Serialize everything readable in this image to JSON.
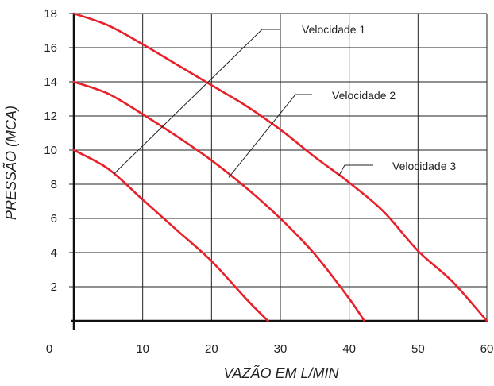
{
  "chart_data": {
    "type": "line",
    "xlabel": "VAZÃO EM L/MIN",
    "ylabel": "PRESSÃO (MCA)",
    "xlim": [
      0,
      60
    ],
    "ylim": [
      0,
      18
    ],
    "x_ticks": [
      0,
      10,
      20,
      30,
      40,
      50,
      60
    ],
    "y_ticks": [
      2,
      4,
      6,
      8,
      10,
      12,
      14,
      16,
      18
    ],
    "grid": true,
    "series_color": "#e8202a",
    "series": [
      {
        "name": "Velocidade 1",
        "x": [
          0,
          5,
          10,
          15,
          20,
          25,
          28.2
        ],
        "y": [
          10,
          8.9,
          7.1,
          5.3,
          3.5,
          1.3,
          0
        ]
      },
      {
        "name": "Velocidade 2",
        "x": [
          0,
          5,
          10,
          15,
          20,
          25,
          30,
          35,
          40,
          42.2
        ],
        "y": [
          14,
          13.3,
          12.1,
          10.8,
          9.4,
          7.8,
          6.0,
          3.9,
          1.3,
          0
        ]
      },
      {
        "name": "Velocidade 3",
        "x": [
          0,
          5,
          10,
          15,
          20,
          25,
          30,
          35,
          40,
          45,
          50,
          55,
          60
        ],
        "y": [
          18,
          17.3,
          16.2,
          15.0,
          13.8,
          12.6,
          11.2,
          9.6,
          8.1,
          6.4,
          4.1,
          2.3,
          0
        ]
      }
    ],
    "legend": [
      {
        "label": "Velocidade 1",
        "anchor": [
          5.8,
          8.6
        ],
        "placement": "top-center"
      },
      {
        "label": "Velocidade 2",
        "anchor": [
          22.5,
          8.4
        ],
        "placement": "top-right"
      },
      {
        "label": "Velocidade 3",
        "anchor": [
          38.5,
          8.5
        ],
        "placement": "right"
      }
    ]
  }
}
